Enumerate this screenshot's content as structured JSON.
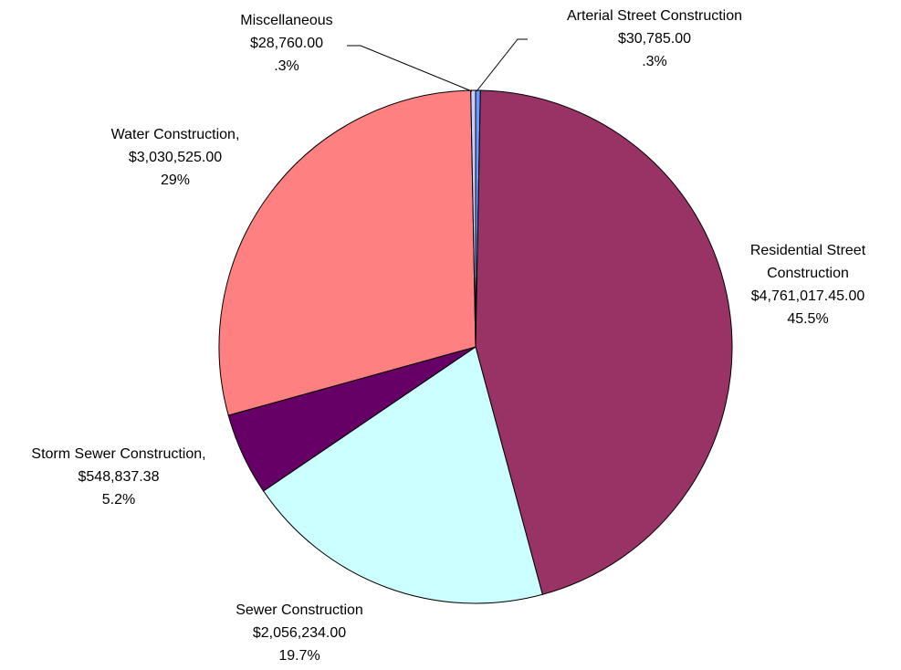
{
  "chart_data": {
    "type": "pie",
    "categories": [
      "Arterial Street Construction",
      "Residential Street Construction",
      "Sewer Construction",
      "Storm Sewer Construction,",
      "Water Construction,",
      "Miscellaneous"
    ],
    "amounts": [
      "$30,785.00",
      "$4,761,017.45.00",
      "$2,056,234.00",
      "$548,837.38",
      "$3,030,525.00",
      "$28,760.00"
    ],
    "values": [
      0.3,
      45.5,
      19.7,
      5.2,
      29,
      0.3
    ],
    "value_labels": [
      ".3%",
      "45.5%",
      "19.7%",
      "5.2%",
      "29%",
      ".3%"
    ],
    "colors": [
      "#6699ff",
      "#993366",
      "#ccffff",
      "#660066",
      "#ff8080",
      "#ccccff"
    ]
  }
}
